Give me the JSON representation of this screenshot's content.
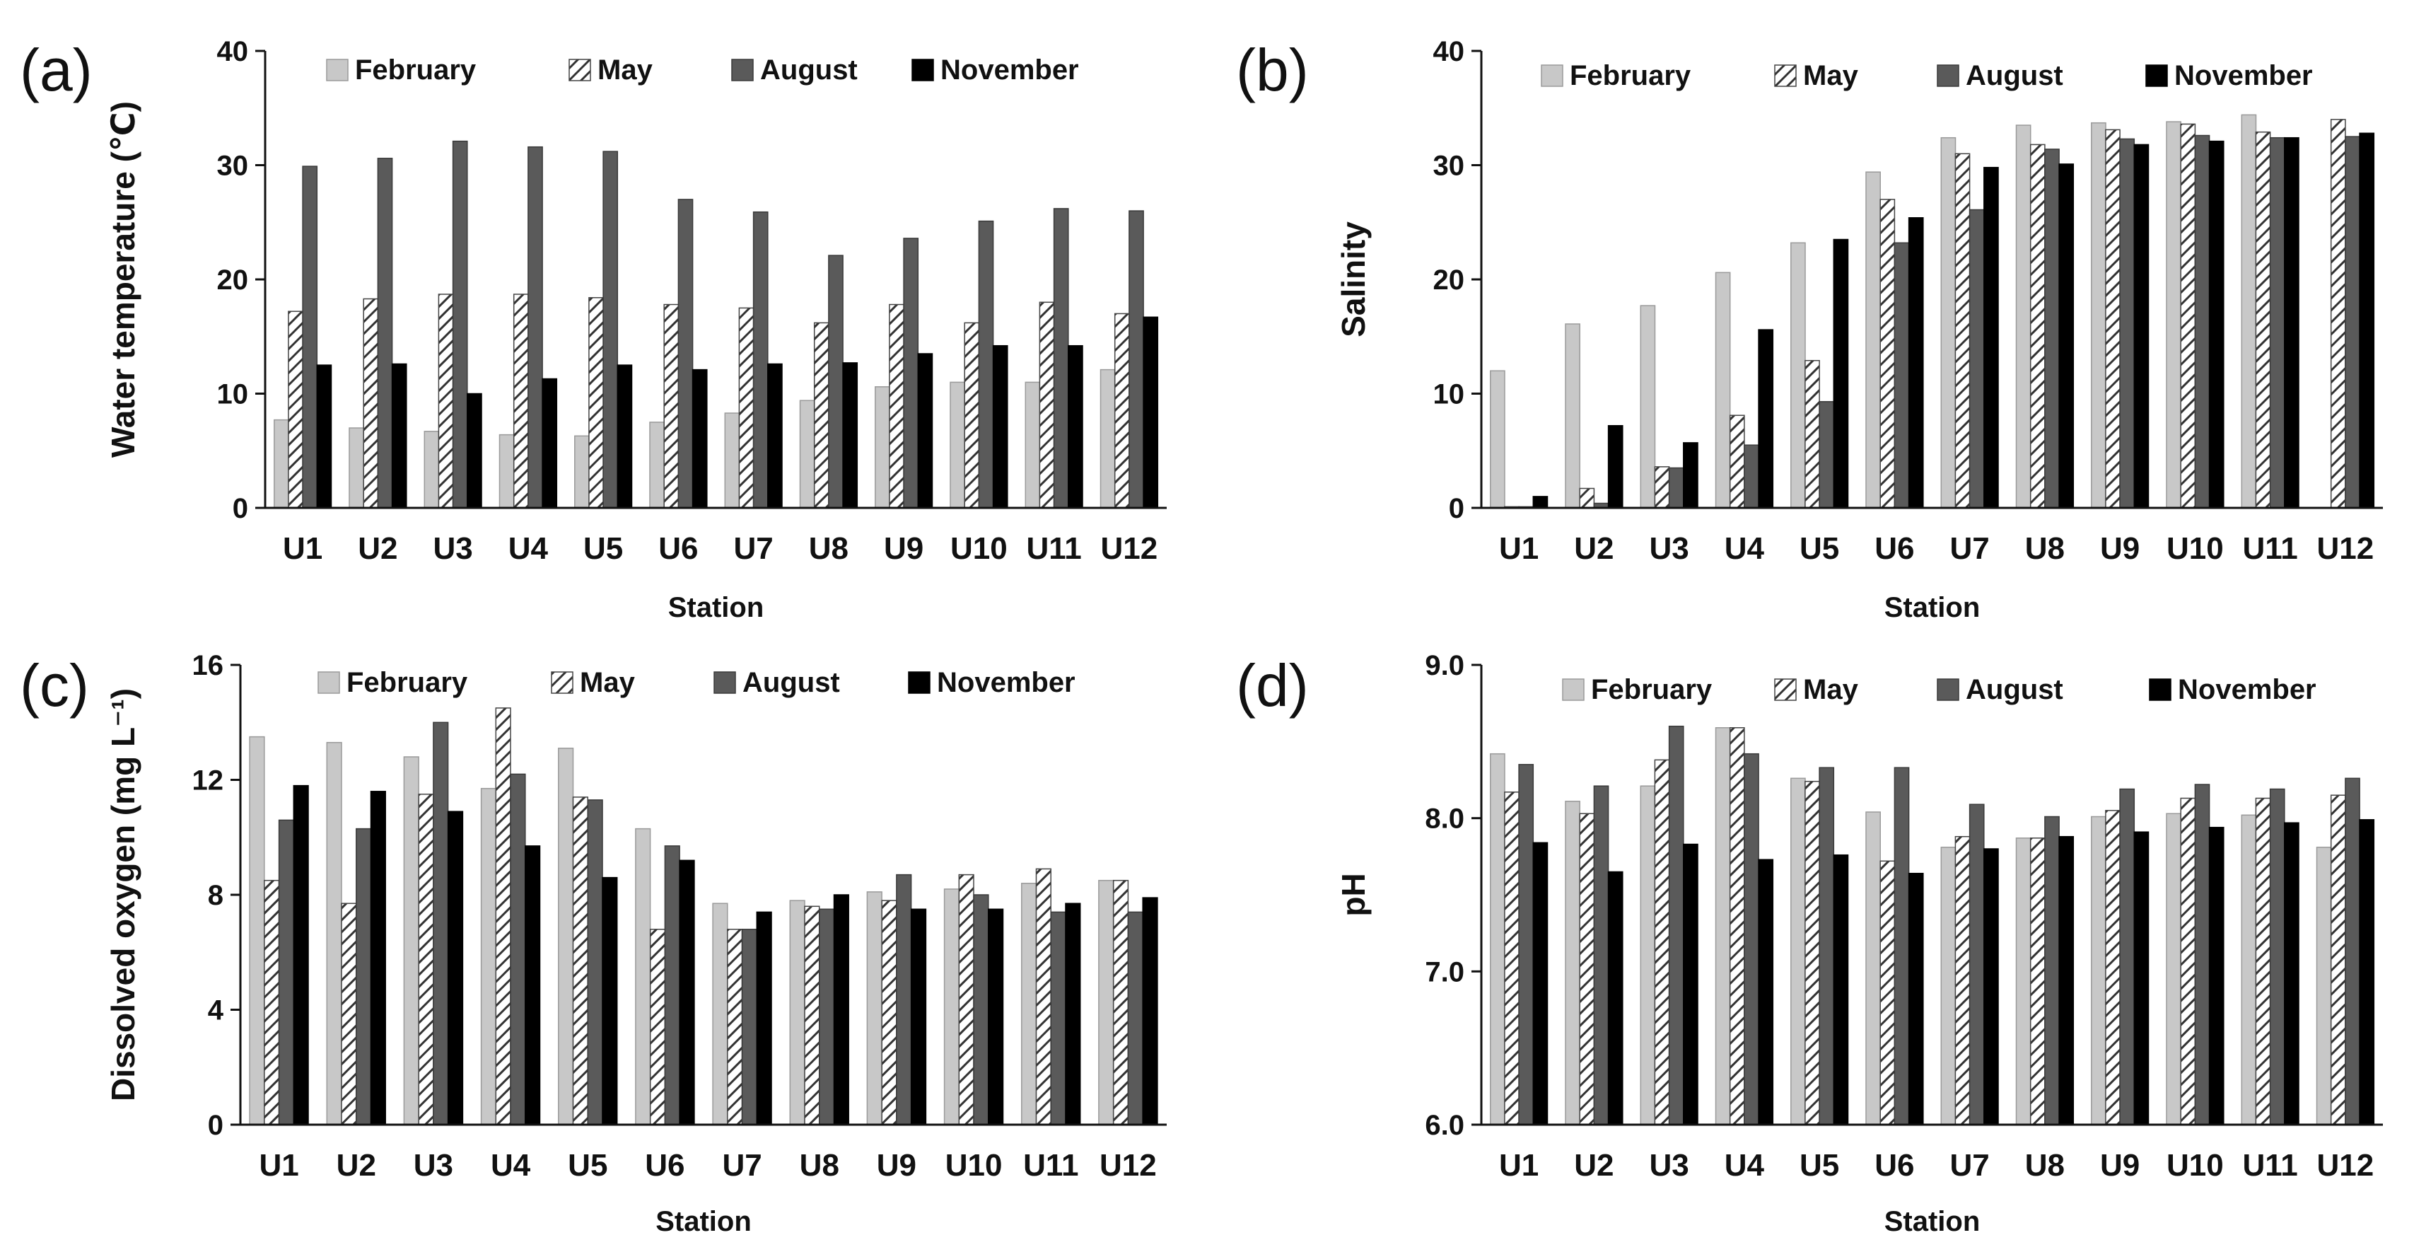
{
  "series_style": {
    "February": {
      "fill": "#c8c8c8",
      "stroke": "#9a9a9a",
      "pattern": "none"
    },
    "May": {
      "fill": "#ffffff",
      "stroke": "#444444",
      "pattern": "hatch"
    },
    "August": {
      "fill": "#5a5a5a",
      "stroke": "#3a3a3a",
      "pattern": "none"
    },
    "November": {
      "fill": "#000000",
      "stroke": "#000000",
      "pattern": "none"
    }
  },
  "chart_data": [
    {
      "id": "a",
      "panel_label": "(a)",
      "type": "bar",
      "title": "",
      "xlabel": "Station",
      "ylabel": "Water temperature (℃)",
      "ylim": [
        0,
        40
      ],
      "yticks": [
        "0",
        "10",
        "20",
        "30",
        "40"
      ],
      "categories": [
        "U1",
        "U2",
        "U3",
        "U4",
        "U5",
        "U6",
        "U7",
        "U8",
        "U9",
        "U10",
        "U11",
        "U12"
      ],
      "legend_position": "top",
      "series": [
        {
          "name": "February",
          "values": [
            7.7,
            7.0,
            6.7,
            6.4,
            6.3,
            7.5,
            8.3,
            9.4,
            10.6,
            11.0,
            11.0,
            12.1
          ]
        },
        {
          "name": "May",
          "values": [
            17.2,
            18.3,
            18.7,
            18.7,
            18.4,
            17.8,
            17.5,
            16.2,
            17.8,
            16.2,
            18.0,
            17.0
          ]
        },
        {
          "name": "August",
          "values": [
            29.9,
            30.6,
            32.1,
            31.6,
            31.2,
            27.0,
            25.9,
            22.1,
            23.6,
            25.1,
            26.2,
            26.0
          ]
        },
        {
          "name": "November",
          "values": [
            12.5,
            12.6,
            10.0,
            11.3,
            12.5,
            12.1,
            12.6,
            12.7,
            13.5,
            14.2,
            14.2,
            16.7
          ]
        }
      ]
    },
    {
      "id": "b",
      "panel_label": "(b)",
      "type": "bar",
      "title": "",
      "xlabel": "Station",
      "ylabel": "Salinity",
      "ylim": [
        0,
        40
      ],
      "yticks": [
        "0",
        "10",
        "20",
        "30",
        "40"
      ],
      "categories": [
        "U1",
        "U2",
        "U3",
        "U4",
        "U5",
        "U6",
        "U7",
        "U8",
        "U9",
        "U10",
        "U11",
        "U12"
      ],
      "legend_position": "top",
      "series": [
        {
          "name": "February",
          "values": [
            12.0,
            16.1,
            17.7,
            20.6,
            23.2,
            29.4,
            32.4,
            33.5,
            33.7,
            33.8,
            34.4,
            0
          ]
        },
        {
          "name": "May",
          "values": [
            0.1,
            1.7,
            3.6,
            8.1,
            12.9,
            27.0,
            31.0,
            31.8,
            33.1,
            33.6,
            32.9,
            34.0
          ]
        },
        {
          "name": "August",
          "values": [
            0.1,
            0.4,
            3.5,
            5.5,
            9.3,
            23.2,
            26.1,
            31.4,
            32.3,
            32.6,
            32.4,
            32.5
          ]
        },
        {
          "name": "November",
          "values": [
            1.0,
            7.2,
            5.7,
            15.6,
            23.5,
            25.4,
            29.8,
            30.1,
            31.8,
            32.1,
            32.4,
            32.8
          ]
        }
      ]
    },
    {
      "id": "c",
      "panel_label": "(c)",
      "type": "bar",
      "title": "",
      "xlabel": "Station",
      "ylabel": "Dissolved oxygen (mg L⁻¹)",
      "ylim": [
        0,
        16
      ],
      "yticks": [
        "0",
        "4",
        "8",
        "12",
        "16"
      ],
      "categories": [
        "U1",
        "U2",
        "U3",
        "U4",
        "U5",
        "U6",
        "U7",
        "U8",
        "U9",
        "U10",
        "U11",
        "U12"
      ],
      "legend_position": "top",
      "series": [
        {
          "name": "February",
          "values": [
            13.5,
            13.3,
            12.8,
            11.7,
            13.1,
            10.3,
            7.7,
            7.8,
            8.1,
            8.2,
            8.4,
            8.5
          ]
        },
        {
          "name": "May",
          "values": [
            8.5,
            7.7,
            11.5,
            14.5,
            11.4,
            6.8,
            6.8,
            7.6,
            7.8,
            8.7,
            8.9,
            8.5
          ]
        },
        {
          "name": "August",
          "values": [
            10.6,
            10.3,
            14.0,
            12.2,
            11.3,
            9.7,
            6.8,
            7.5,
            8.7,
            8.0,
            7.4,
            7.4
          ]
        },
        {
          "name": "November",
          "values": [
            11.8,
            11.6,
            10.9,
            9.7,
            8.6,
            9.2,
            7.4,
            8.0,
            7.5,
            7.5,
            7.7,
            7.9
          ]
        }
      ]
    },
    {
      "id": "d",
      "panel_label": "(d)",
      "type": "bar",
      "title": "",
      "xlabel": "Station",
      "ylabel": "pH",
      "ylim": [
        6.0,
        9.0
      ],
      "yticks": [
        "6.0",
        "7.0",
        "8.0",
        "9.0"
      ],
      "categories": [
        "U1",
        "U2",
        "U3",
        "U4",
        "U5",
        "U6",
        "U7",
        "U8",
        "U9",
        "U10",
        "U11",
        "U12"
      ],
      "legend_position": "top",
      "series": [
        {
          "name": "February",
          "values": [
            8.42,
            8.11,
            8.21,
            8.59,
            8.26,
            8.04,
            7.81,
            7.87,
            8.01,
            8.03,
            8.02,
            7.81
          ]
        },
        {
          "name": "May",
          "values": [
            8.17,
            8.03,
            8.38,
            8.59,
            8.24,
            7.72,
            7.88,
            7.87,
            8.05,
            8.13,
            8.13,
            8.15
          ]
        },
        {
          "name": "August",
          "values": [
            8.35,
            8.21,
            8.6,
            8.42,
            8.33,
            8.33,
            8.09,
            8.01,
            8.19,
            8.22,
            8.19,
            8.26
          ]
        },
        {
          "name": "November",
          "values": [
            7.84,
            7.65,
            7.83,
            7.73,
            7.76,
            7.64,
            7.8,
            7.88,
            7.91,
            7.94,
            7.97,
            7.99
          ]
        }
      ]
    }
  ]
}
